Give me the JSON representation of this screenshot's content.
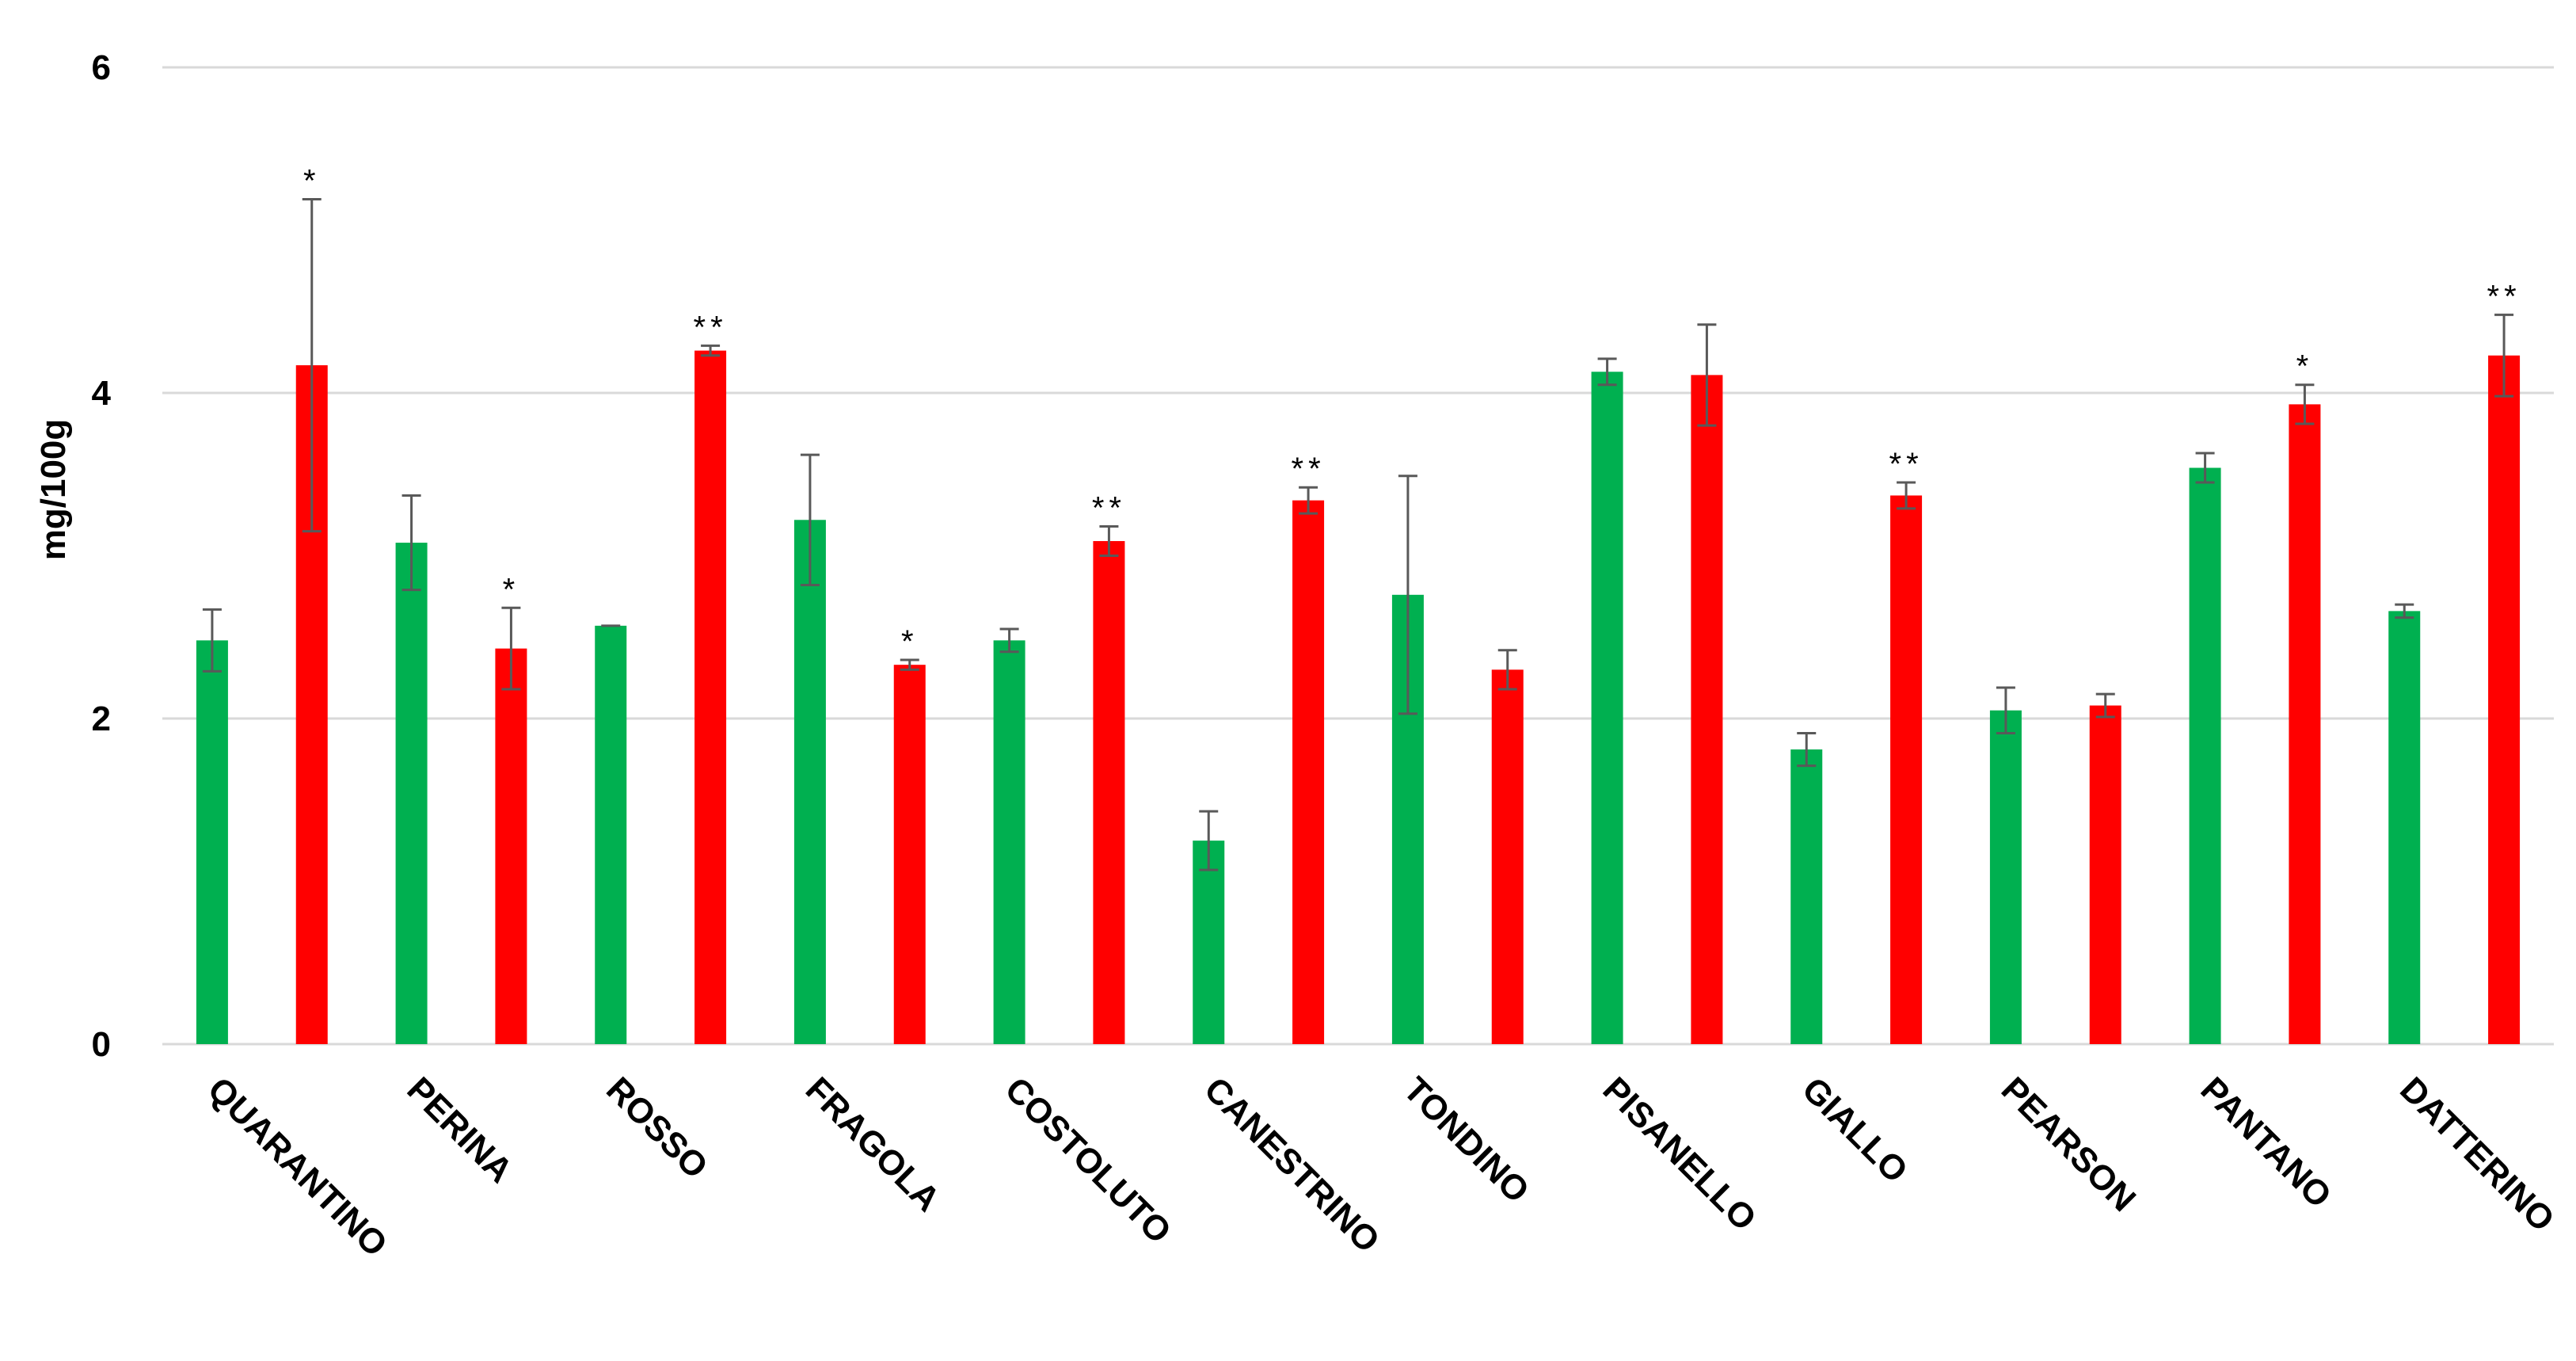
{
  "chart_data": {
    "type": "bar",
    "ylabel": "mg/100g",
    "ylim": [
      0,
      6
    ],
    "yticks": [
      "0",
      "2",
      "4",
      "6"
    ],
    "grid": true,
    "categories": [
      "QUARANTINO",
      "PERINA",
      "ROSSO",
      "FRAGOLA",
      "COSTOLUTO",
      "CANESTRINO",
      "TONDINO",
      "PISANELLO",
      "GIALLO",
      "PEARSON",
      "PANTANO",
      "DATTERINO"
    ],
    "series": [
      {
        "color": "#00b050",
        "values": [
          2.48,
          3.08,
          2.57,
          3.22,
          2.48,
          1.25,
          2.76,
          4.13,
          1.81,
          2.05,
          3.54,
          2.66
        ],
        "errors": [
          0.19,
          0.29,
          0.0,
          0.4,
          0.07,
          0.18,
          0.73,
          0.08,
          0.1,
          0.14,
          0.09,
          0.04
        ],
        "significance": [
          "",
          "",
          "",
          "",
          "",
          "",
          "",
          "",
          "",
          "",
          "",
          ""
        ]
      },
      {
        "color": "#ff0000",
        "values": [
          4.17,
          2.43,
          4.26,
          2.33,
          3.09,
          3.34,
          2.3,
          4.11,
          3.37,
          2.08,
          3.93,
          4.23
        ],
        "errors": [
          1.02,
          0.25,
          0.03,
          0.03,
          0.09,
          0.08,
          0.12,
          0.31,
          0.08,
          0.07,
          0.12,
          0.25
        ],
        "significance": [
          "*",
          "*",
          "**",
          "*",
          "**",
          "**",
          "",
          "",
          "**",
          "",
          "*",
          "**"
        ]
      }
    ]
  }
}
